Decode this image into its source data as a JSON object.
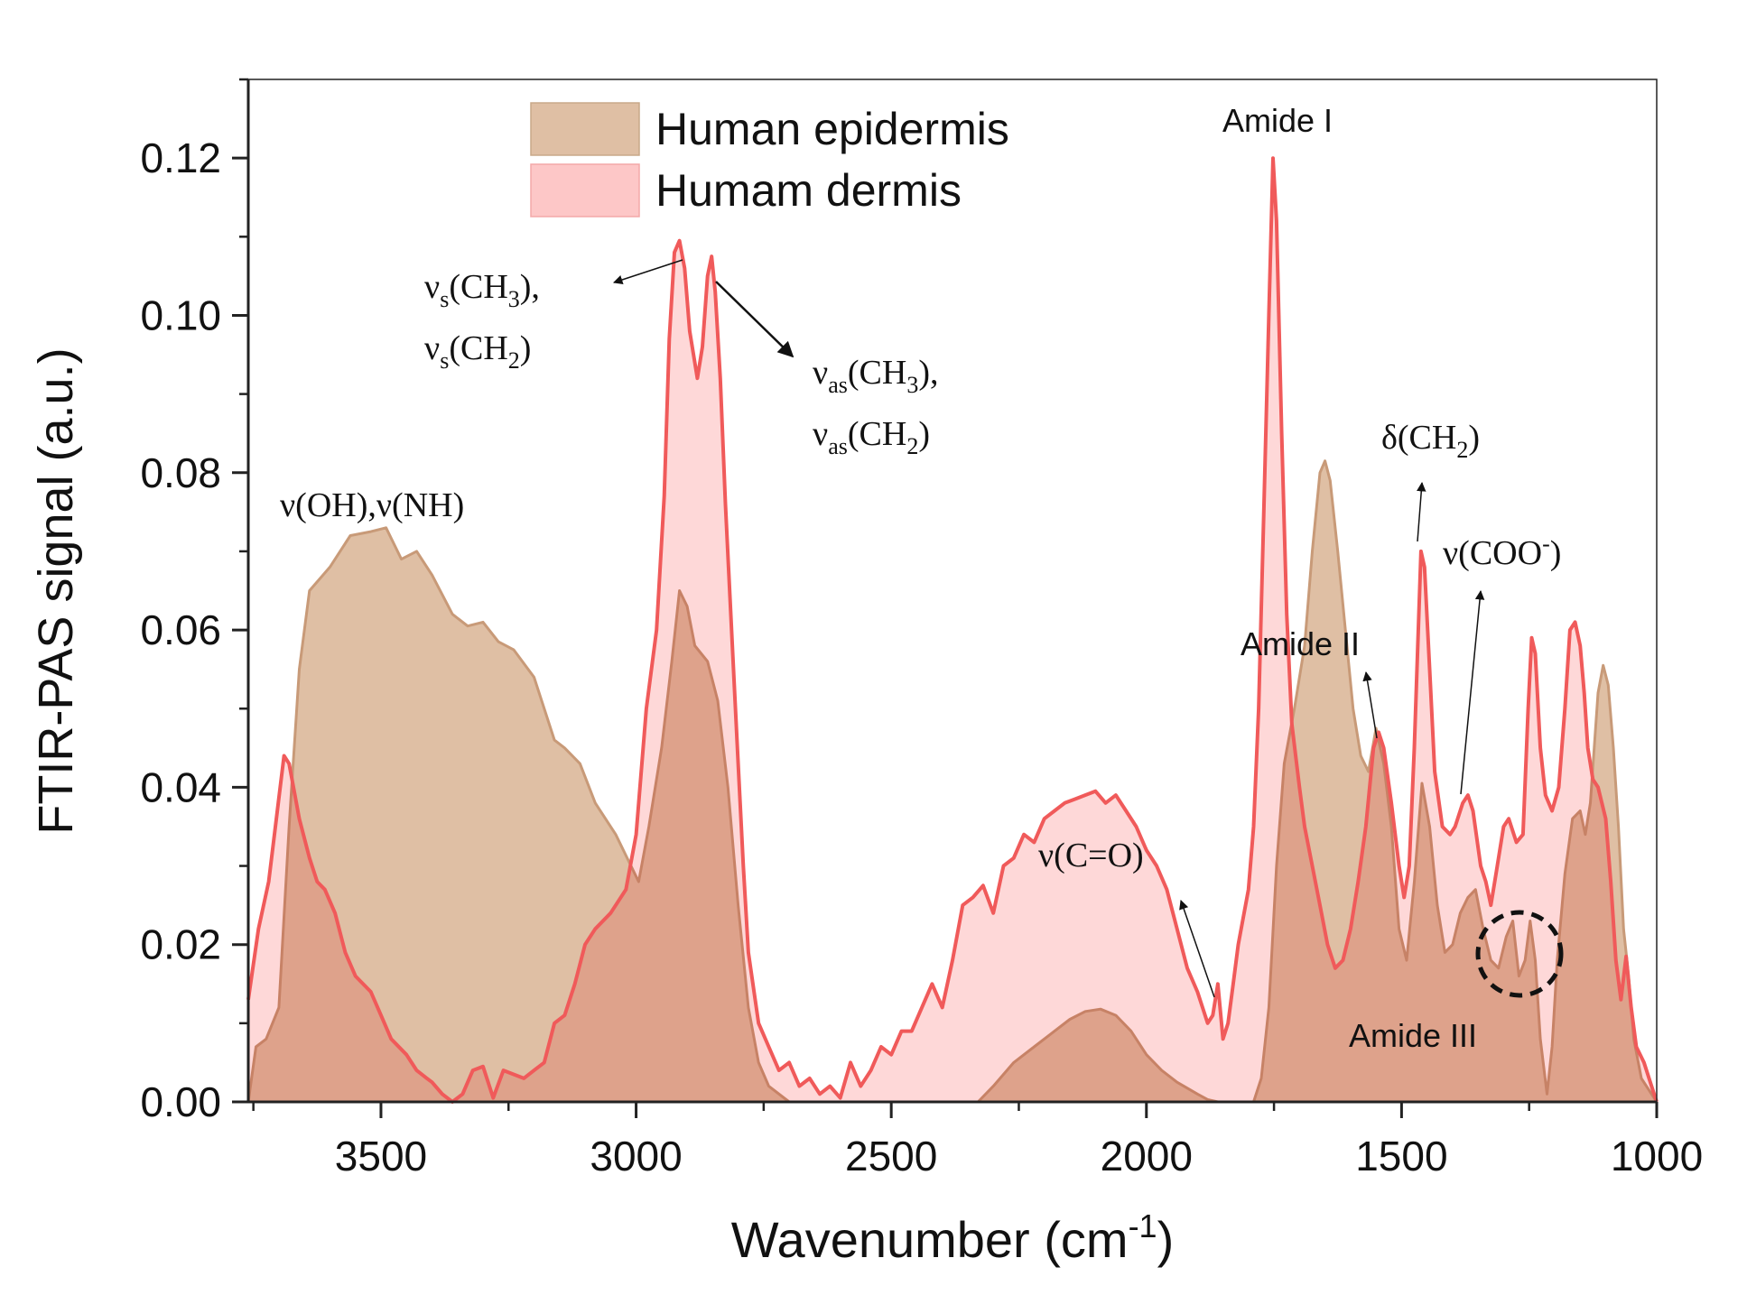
{
  "chart_data": {
    "type": "area",
    "xlabel": "Wavenumber (cm",
    "xlabel_sup": "-1",
    "xlabel_end": ")",
    "ylabel": "FTIR-PAS signal (a.u.)",
    "xlim": [
      3760,
      1000
    ],
    "ylim": [
      0,
      0.13
    ],
    "x_ticks": [
      3500,
      3000,
      2500,
      2000,
      1500,
      1000
    ],
    "x_tick_labels": [
      "3500",
      "3000",
      "2500",
      "2000",
      "1500",
      "1000"
    ],
    "y_ticks": [
      0,
      0.02,
      0.04,
      0.06,
      0.08,
      0.1,
      0.12
    ],
    "y_tick_labels": [
      "0.00",
      "0.02",
      "0.04",
      "0.06",
      "0.08",
      "0.10",
      "0.12"
    ],
    "legend_position": "top-left",
    "series": [
      {
        "name": "Human epidermis",
        "fill": "#dfbfa4",
        "line": "#c89a78",
        "points": [
          [
            3760,
            0.0
          ],
          [
            3745,
            0.007
          ],
          [
            3725,
            0.008
          ],
          [
            3700,
            0.012
          ],
          [
            3680,
            0.035
          ],
          [
            3660,
            0.055
          ],
          [
            3640,
            0.065
          ],
          [
            3600,
            0.068
          ],
          [
            3560,
            0.072
          ],
          [
            3520,
            0.0725
          ],
          [
            3490,
            0.073
          ],
          [
            3460,
            0.069
          ],
          [
            3430,
            0.07
          ],
          [
            3400,
            0.067
          ],
          [
            3360,
            0.062
          ],
          [
            3330,
            0.0605
          ],
          [
            3300,
            0.061
          ],
          [
            3270,
            0.0585
          ],
          [
            3240,
            0.0575
          ],
          [
            3200,
            0.054
          ],
          [
            3160,
            0.046
          ],
          [
            3140,
            0.045
          ],
          [
            3110,
            0.043
          ],
          [
            3080,
            0.038
          ],
          [
            3040,
            0.034
          ],
          [
            3010,
            0.03
          ],
          [
            2995,
            0.028
          ],
          [
            2975,
            0.035
          ],
          [
            2950,
            0.045
          ],
          [
            2930,
            0.056
          ],
          [
            2915,
            0.065
          ],
          [
            2900,
            0.063
          ],
          [
            2885,
            0.058
          ],
          [
            2860,
            0.056
          ],
          [
            2840,
            0.051
          ],
          [
            2820,
            0.04
          ],
          [
            2800,
            0.025
          ],
          [
            2780,
            0.012
          ],
          [
            2760,
            0.005
          ],
          [
            2740,
            0.002
          ],
          [
            2700,
            0.0
          ],
          [
            2600,
            0.0
          ],
          [
            2500,
            0.0
          ],
          [
            2400,
            0.0
          ],
          [
            2330,
            0.0
          ],
          [
            2300,
            0.002
          ],
          [
            2260,
            0.005
          ],
          [
            2220,
            0.007
          ],
          [
            2180,
            0.009
          ],
          [
            2150,
            0.0105
          ],
          [
            2120,
            0.0115
          ],
          [
            2090,
            0.0118
          ],
          [
            2060,
            0.011
          ],
          [
            2030,
            0.009
          ],
          [
            2000,
            0.006
          ],
          [
            1970,
            0.004
          ],
          [
            1940,
            0.0025
          ],
          [
            1900,
            0.001
          ],
          [
            1880,
            0.0003
          ],
          [
            1860,
            0.0
          ],
          [
            1820,
            0.0
          ],
          [
            1790,
            0.0
          ],
          [
            1775,
            0.003
          ],
          [
            1760,
            0.012
          ],
          [
            1745,
            0.03
          ],
          [
            1730,
            0.043
          ],
          [
            1710,
            0.05
          ],
          [
            1690,
            0.058
          ],
          [
            1675,
            0.07
          ],
          [
            1660,
            0.08
          ],
          [
            1650,
            0.0815
          ],
          [
            1640,
            0.079
          ],
          [
            1625,
            0.07
          ],
          [
            1610,
            0.06
          ],
          [
            1595,
            0.05
          ],
          [
            1580,
            0.044
          ],
          [
            1565,
            0.042
          ],
          [
            1550,
            0.0475
          ],
          [
            1535,
            0.043
          ],
          [
            1520,
            0.035
          ],
          [
            1505,
            0.022
          ],
          [
            1490,
            0.018
          ],
          [
            1475,
            0.028
          ],
          [
            1460,
            0.0405
          ],
          [
            1445,
            0.035
          ],
          [
            1430,
            0.025
          ],
          [
            1415,
            0.019
          ],
          [
            1400,
            0.02
          ],
          [
            1385,
            0.024
          ],
          [
            1370,
            0.026
          ],
          [
            1355,
            0.027
          ],
          [
            1340,
            0.022
          ],
          [
            1325,
            0.018
          ],
          [
            1310,
            0.017
          ],
          [
            1295,
            0.021
          ],
          [
            1282,
            0.023
          ],
          [
            1270,
            0.016
          ],
          [
            1258,
            0.018
          ],
          [
            1248,
            0.023
          ],
          [
            1238,
            0.018
          ],
          [
            1228,
            0.008
          ],
          [
            1215,
            0.001
          ],
          [
            1205,
            0.007
          ],
          [
            1195,
            0.018
          ],
          [
            1180,
            0.029
          ],
          [
            1165,
            0.036
          ],
          [
            1150,
            0.037
          ],
          [
            1140,
            0.034
          ],
          [
            1130,
            0.038
          ],
          [
            1115,
            0.052
          ],
          [
            1105,
            0.0555
          ],
          [
            1095,
            0.053
          ],
          [
            1085,
            0.045
          ],
          [
            1075,
            0.035
          ],
          [
            1065,
            0.022
          ],
          [
            1055,
            0.016
          ],
          [
            1045,
            0.008
          ],
          [
            1030,
            0.003
          ],
          [
            1010,
            0.001
          ],
          [
            1000,
            0.0
          ]
        ]
      },
      {
        "name": "Humam dermis",
        "fill": "#fdc7c7",
        "line": "#f05a5a",
        "points": [
          [
            3760,
            0.013
          ],
          [
            3740,
            0.022
          ],
          [
            3720,
            0.028
          ],
          [
            3705,
            0.036
          ],
          [
            3690,
            0.044
          ],
          [
            3680,
            0.043
          ],
          [
            3660,
            0.036
          ],
          [
            3640,
            0.031
          ],
          [
            3625,
            0.028
          ],
          [
            3610,
            0.027
          ],
          [
            3590,
            0.024
          ],
          [
            3570,
            0.019
          ],
          [
            3550,
            0.016
          ],
          [
            3520,
            0.014
          ],
          [
            3500,
            0.011
          ],
          [
            3480,
            0.008
          ],
          [
            3450,
            0.006
          ],
          [
            3430,
            0.004
          ],
          [
            3410,
            0.003
          ],
          [
            3400,
            0.0025
          ],
          [
            3380,
            0.001
          ],
          [
            3360,
            0.0
          ],
          [
            3340,
            0.001
          ],
          [
            3320,
            0.004
          ],
          [
            3300,
            0.0045
          ],
          [
            3280,
            0.0005
          ],
          [
            3260,
            0.004
          ],
          [
            3240,
            0.0035
          ],
          [
            3220,
            0.003
          ],
          [
            3200,
            0.004
          ],
          [
            3180,
            0.005
          ],
          [
            3160,
            0.01
          ],
          [
            3140,
            0.011
          ],
          [
            3120,
            0.015
          ],
          [
            3100,
            0.02
          ],
          [
            3080,
            0.022
          ],
          [
            3050,
            0.024
          ],
          [
            3020,
            0.027
          ],
          [
            3000,
            0.034
          ],
          [
            2980,
            0.05
          ],
          [
            2960,
            0.06
          ],
          [
            2945,
            0.077
          ],
          [
            2935,
            0.097
          ],
          [
            2925,
            0.108
          ],
          [
            2915,
            0.1095
          ],
          [
            2905,
            0.106
          ],
          [
            2895,
            0.098
          ],
          [
            2880,
            0.092
          ],
          [
            2870,
            0.096
          ],
          [
            2860,
            0.105
          ],
          [
            2852,
            0.1075
          ],
          [
            2845,
            0.103
          ],
          [
            2835,
            0.092
          ],
          [
            2825,
            0.076
          ],
          [
            2810,
            0.056
          ],
          [
            2800,
            0.043
          ],
          [
            2790,
            0.03
          ],
          [
            2780,
            0.019
          ],
          [
            2760,
            0.01
          ],
          [
            2740,
            0.007
          ],
          [
            2720,
            0.004
          ],
          [
            2700,
            0.005
          ],
          [
            2680,
            0.002
          ],
          [
            2660,
            0.003
          ],
          [
            2640,
            0.001
          ],
          [
            2620,
            0.002
          ],
          [
            2600,
            0.0005
          ],
          [
            2580,
            0.005
          ],
          [
            2560,
            0.002
          ],
          [
            2540,
            0.004
          ],
          [
            2520,
            0.007
          ],
          [
            2500,
            0.006
          ],
          [
            2480,
            0.009
          ],
          [
            2460,
            0.009
          ],
          [
            2440,
            0.012
          ],
          [
            2420,
            0.015
          ],
          [
            2400,
            0.012
          ],
          [
            2380,
            0.018
          ],
          [
            2360,
            0.025
          ],
          [
            2340,
            0.026
          ],
          [
            2320,
            0.0275
          ],
          [
            2300,
            0.024
          ],
          [
            2280,
            0.03
          ],
          [
            2260,
            0.031
          ],
          [
            2240,
            0.034
          ],
          [
            2220,
            0.033
          ],
          [
            2200,
            0.036
          ],
          [
            2180,
            0.037
          ],
          [
            2160,
            0.038
          ],
          [
            2140,
            0.0385
          ],
          [
            2120,
            0.039
          ],
          [
            2100,
            0.0395
          ],
          [
            2080,
            0.038
          ],
          [
            2060,
            0.039
          ],
          [
            2040,
            0.037
          ],
          [
            2020,
            0.035
          ],
          [
            2000,
            0.032
          ],
          [
            1980,
            0.03
          ],
          [
            1960,
            0.027
          ],
          [
            1940,
            0.022
          ],
          [
            1920,
            0.017
          ],
          [
            1900,
            0.014
          ],
          [
            1880,
            0.01
          ],
          [
            1870,
            0.011
          ],
          [
            1860,
            0.015
          ],
          [
            1850,
            0.008
          ],
          [
            1840,
            0.01
          ],
          [
            1830,
            0.015
          ],
          [
            1820,
            0.02
          ],
          [
            1800,
            0.027
          ],
          [
            1790,
            0.035
          ],
          [
            1780,
            0.05
          ],
          [
            1770,
            0.075
          ],
          [
            1760,
            0.1
          ],
          [
            1752,
            0.12
          ],
          [
            1745,
            0.112
          ],
          [
            1735,
            0.085
          ],
          [
            1725,
            0.062
          ],
          [
            1715,
            0.048
          ],
          [
            1700,
            0.04
          ],
          [
            1690,
            0.035
          ],
          [
            1675,
            0.03
          ],
          [
            1660,
            0.025
          ],
          [
            1645,
            0.02
          ],
          [
            1630,
            0.017
          ],
          [
            1615,
            0.018
          ],
          [
            1600,
            0.022
          ],
          [
            1585,
            0.028
          ],
          [
            1570,
            0.035
          ],
          [
            1555,
            0.045
          ],
          [
            1545,
            0.047
          ],
          [
            1535,
            0.045
          ],
          [
            1520,
            0.038
          ],
          [
            1505,
            0.03
          ],
          [
            1495,
            0.026
          ],
          [
            1485,
            0.03
          ],
          [
            1475,
            0.045
          ],
          [
            1462,
            0.07
          ],
          [
            1455,
            0.068
          ],
          [
            1445,
            0.055
          ],
          [
            1435,
            0.042
          ],
          [
            1420,
            0.035
          ],
          [
            1405,
            0.034
          ],
          [
            1395,
            0.035
          ],
          [
            1380,
            0.038
          ],
          [
            1370,
            0.039
          ],
          [
            1360,
            0.037
          ],
          [
            1345,
            0.03
          ],
          [
            1335,
            0.028
          ],
          [
            1325,
            0.025
          ],
          [
            1315,
            0.029
          ],
          [
            1300,
            0.035
          ],
          [
            1290,
            0.036
          ],
          [
            1275,
            0.033
          ],
          [
            1262,
            0.034
          ],
          [
            1252,
            0.05
          ],
          [
            1245,
            0.059
          ],
          [
            1238,
            0.057
          ],
          [
            1228,
            0.045
          ],
          [
            1218,
            0.039
          ],
          [
            1205,
            0.037
          ],
          [
            1192,
            0.04
          ],
          [
            1180,
            0.05
          ],
          [
            1170,
            0.06
          ],
          [
            1160,
            0.061
          ],
          [
            1150,
            0.058
          ],
          [
            1142,
            0.052
          ],
          [
            1135,
            0.045
          ],
          [
            1125,
            0.041
          ],
          [
            1115,
            0.04
          ],
          [
            1100,
            0.036
          ],
          [
            1090,
            0.028
          ],
          [
            1080,
            0.018
          ],
          [
            1070,
            0.013
          ],
          [
            1060,
            0.0185
          ],
          [
            1050,
            0.012
          ],
          [
            1040,
            0.007
          ],
          [
            1025,
            0.005
          ],
          [
            1010,
            0.002
          ],
          [
            1000,
            0.0
          ]
        ]
      }
    ],
    "annotations": {
      "oh_nh": "ν(OH),ν(NH)",
      "vs_nu": "ν",
      "vs_sub": "s",
      "vs_ch3": "(CH",
      "vs_3": "3",
      "vs_close": "),",
      "vs_ch2": "(CH",
      "vs_2": "2",
      "vs_close2": ")",
      "vas_nu": "ν",
      "vas_sub": "as",
      "vas_ch3": "(CH",
      "vas_3": "3",
      "vas_close": "),",
      "vas_ch2": "(CH",
      "vas_2": "2",
      "vas_close2": ")",
      "co": "ν(C=O)",
      "amide_i": "Amide I",
      "amide_ii": "Amide II",
      "amide_iii": "Amide III",
      "delta_main": "δ(CH",
      "delta_sub": "2",
      "delta_close": ")",
      "coo_main": "ν(COO",
      "coo_sup": "-",
      "coo_close": ")"
    }
  }
}
